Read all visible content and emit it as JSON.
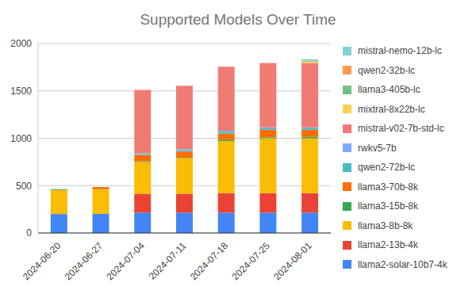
{
  "chart_data": {
    "type": "bar",
    "title": "Supported Models Over Time",
    "stacked": true,
    "grid": true,
    "legend": "right",
    "categories": [
      "2024-06-20",
      "2024-06-27",
      "2024-07-04",
      "2024-07-11",
      "2024-07-18",
      "2024-07-25",
      "2024-08-01"
    ],
    "ylim": [
      0,
      2000
    ],
    "yticks": [
      0,
      500,
      1000,
      1500,
      2000
    ],
    "series": [
      {
        "name": "llama2-solar-10b7-4k",
        "color": "#4285f4",
        "values": [
          200,
          200,
          215,
          215,
          215,
          215,
          215
        ]
      },
      {
        "name": "llama2-13b-4k",
        "color": "#ea4335",
        "values": [
          0,
          0,
          200,
          200,
          205,
          205,
          205
        ]
      },
      {
        "name": "llama3-8b-8k",
        "color": "#fbbc04",
        "values": [
          255,
          260,
          335,
          375,
          550,
          580,
          580
        ]
      },
      {
        "name": "llama3-15b-8k",
        "color": "#34a853",
        "values": [
          8,
          5,
          5,
          5,
          15,
          10,
          15
        ]
      },
      {
        "name": "llama3-70b-8k",
        "color": "#ff6d01",
        "values": [
          0,
          20,
          70,
          65,
          65,
          80,
          75
        ]
      },
      {
        "name": "qwen2-72b-lc",
        "color": "#46bdc6",
        "values": [
          0,
          0,
          10,
          15,
          20,
          15,
          15
        ]
      },
      {
        "name": "rwkv5-7b",
        "color": "#7baaf7",
        "values": [
          0,
          0,
          5,
          10,
          10,
          10,
          10
        ]
      },
      {
        "name": "mistral-v02-7b-std-lc",
        "color": "#f07b72",
        "values": [
          0,
          0,
          670,
          670,
          675,
          680,
          680
        ]
      },
      {
        "name": "mixtral-8x22b-lc",
        "color": "#fcd04f",
        "values": [
          0,
          0,
          0,
          0,
          0,
          0,
          15
        ]
      },
      {
        "name": "llama3-405b-lc",
        "color": "#71c287",
        "values": [
          0,
          0,
          0,
          0,
          0,
          0,
          5
        ]
      },
      {
        "name": "qwen2-32b-lc",
        "color": "#ff994d",
        "values": [
          0,
          0,
          0,
          0,
          0,
          0,
          5
        ]
      },
      {
        "name": "mistral-nemo-12b-lc",
        "color": "#7ed1d7",
        "values": [
          0,
          0,
          0,
          0,
          0,
          0,
          15
        ]
      }
    ]
  }
}
